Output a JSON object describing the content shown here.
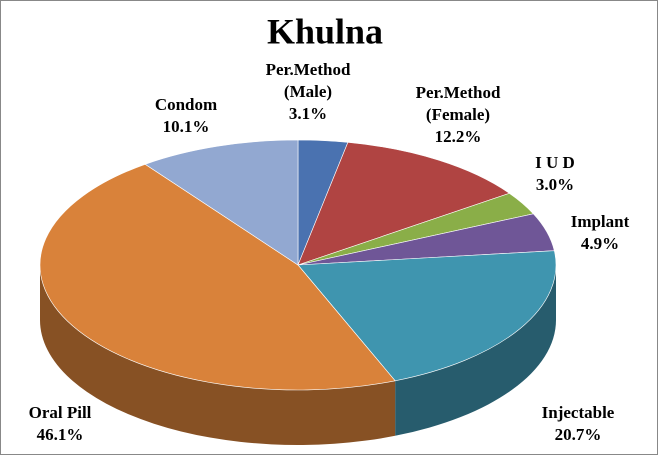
{
  "chart_data": {
    "type": "pie3d",
    "title": "Khulna",
    "categories": [
      "Per.Method\n(Male)",
      "Per.Method\n(Female)",
      "I U D",
      "Implant",
      "Injectable",
      "Oral Pill",
      "Condom"
    ],
    "values": [
      3.1,
      12.2,
      3.0,
      4.9,
      20.7,
      46.1,
      10.1
    ],
    "value_labels": [
      "3.1%",
      "12.2%",
      "3.0%",
      "4.9%",
      "20.7%",
      "46.1%",
      "10.1%"
    ],
    "colors": [
      "#4a72b0",
      "#b04442",
      "#8aae48",
      "#6f5697",
      "#3f95af",
      "#d9823a",
      "#92a8d1"
    ]
  }
}
